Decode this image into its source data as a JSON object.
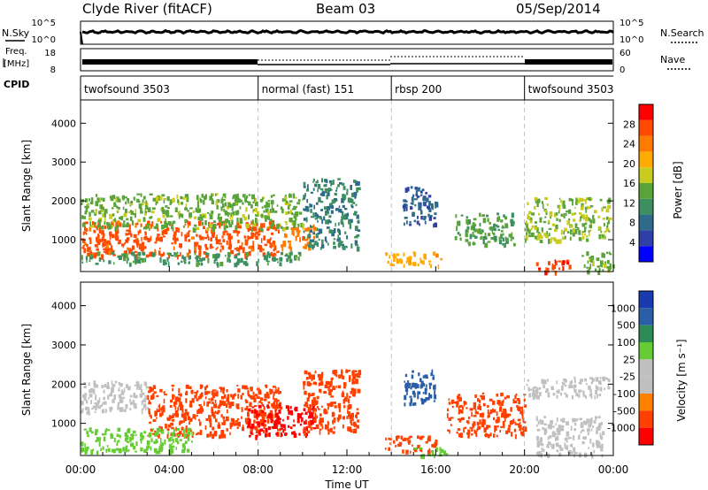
{
  "header": {
    "station": "Clyde River (fitACF)",
    "beam": "Beam 03",
    "date": "05/Sep/2014"
  },
  "top_panels": {
    "nsky_label": "N.Sky",
    "nsearch_label": "N.Search",
    "nsky_ticks": [
      "10^5",
      "10^0"
    ],
    "nsearch_ticks": [
      "10^5",
      "10^0"
    ],
    "freq_label_1": "Freq.",
    "freq_label_2": "[MHz]",
    "freq_ticks": [
      "18",
      "8"
    ],
    "nave_label": "Nave",
    "nave_ticks": [
      "60",
      "0"
    ],
    "cpid_label": "CPID"
  },
  "cpid_segments": [
    {
      "label": "twofsound 3503",
      "start": 0,
      "end": 8
    },
    {
      "label": "normal (fast) 151",
      "start": 8,
      "end": 14
    },
    {
      "label": "rbsp 200",
      "start": 14,
      "end": 20
    },
    {
      "label": "twofsound 3503",
      "start": 20,
      "end": 24
    }
  ],
  "colors": {
    "power": [
      "#0000ff",
      "#2e3fa8",
      "#2e6b8a",
      "#3d8f62",
      "#59a33a",
      "#c8cc1e",
      "#ffaa00",
      "#ff7a00",
      "#ff4a00",
      "#ff0000"
    ],
    "velocity": [
      "#ff0000",
      "#ff4000",
      "#ff7f00",
      "#c0c0c0",
      "#c0c0c0",
      "#66cc33",
      "#2e8b57",
      "#2a5fa8",
      "#1a3ab0"
    ]
  },
  "chart_data": [
    {
      "type": "heatmap",
      "name": "power",
      "xlabel": "",
      "ylabel": "Slant Range [km]",
      "xlim": [
        0,
        24
      ],
      "ylim": [
        180,
        4600
      ],
      "yticks": [
        1000,
        2000,
        3000,
        4000
      ],
      "colorbar_label": "Power [dB]",
      "colorbar_range": [
        0,
        32
      ],
      "colorbar_ticks": [
        "4",
        "8",
        "12",
        "16",
        "20",
        "24",
        "28"
      ],
      "colorbar_tick_values": [
        4,
        8,
        12,
        16,
        20,
        24,
        28
      ],
      "regions": [
        {
          "t0": 0.0,
          "t1": 9.0,
          "r0": 600,
          "r1": 1500,
          "value": 27
        },
        {
          "t0": 9.0,
          "t1": 10.5,
          "r0": 800,
          "r1": 1400,
          "value": 24
        },
        {
          "t0": 0.0,
          "t1": 10.0,
          "r0": 1300,
          "r1": 2200,
          "value": 15
        },
        {
          "t0": 0.0,
          "t1": 10.0,
          "r0": 400,
          "r1": 700,
          "value": 12
        },
        {
          "t0": 10.0,
          "t1": 12.5,
          "r0": 800,
          "r1": 2600,
          "value": 10
        },
        {
          "t0": 13.7,
          "t1": 16.2,
          "r0": 350,
          "r1": 700,
          "value": 21
        },
        {
          "t0": 14.5,
          "t1": 16.0,
          "r0": 1400,
          "r1": 2400,
          "value": 7
        },
        {
          "t0": 16.8,
          "t1": 19.5,
          "r0": 900,
          "r1": 1700,
          "value": 13
        },
        {
          "t0": 20.0,
          "t1": 23.8,
          "r0": 1000,
          "r1": 2100,
          "value": 16
        },
        {
          "t0": 20.5,
          "t1": 22.0,
          "r0": 200,
          "r1": 500,
          "value": 28
        },
        {
          "t0": 22.5,
          "t1": 24.0,
          "r0": 200,
          "r1": 700,
          "value": 15
        }
      ]
    },
    {
      "type": "heatmap",
      "name": "velocity",
      "xlabel": "Time UT",
      "ylabel": "Slant Range [km]",
      "xlim": [
        0,
        24
      ],
      "ylim": [
        180,
        4600
      ],
      "yticks": [
        1000,
        2000,
        3000,
        4000
      ],
      "xticks": [
        "00:00",
        "04:00",
        "08:00",
        "12:00",
        "16:00",
        "20:00",
        "00:00"
      ],
      "xtick_values": [
        0,
        4,
        8,
        12,
        16,
        20,
        24
      ],
      "colorbar_label": "Velocity [m s⁻¹]",
      "colorbar_ticks": [
        "1000",
        "500",
        "100",
        "25",
        "-25",
        "-100",
        "-500",
        "-1000"
      ],
      "regions": [
        {
          "t0": 0.0,
          "t1": 3.0,
          "r0": 1300,
          "r1": 2100,
          "value": -25
        },
        {
          "t0": 3.0,
          "t1": 9.0,
          "r0": 700,
          "r1": 2000,
          "value": -200
        },
        {
          "t0": 7.5,
          "t1": 10.5,
          "r0": 700,
          "r1": 1500,
          "value": -600
        },
        {
          "t0": 0.0,
          "t1": 5.0,
          "r0": 300,
          "r1": 900,
          "value": 60
        },
        {
          "t0": 10.0,
          "t1": 12.5,
          "r0": 800,
          "r1": 2400,
          "value": -120
        },
        {
          "t0": 13.7,
          "t1": 16.0,
          "r0": 300,
          "r1": 700,
          "value": -300
        },
        {
          "t0": 15.0,
          "t1": 16.5,
          "r0": 200,
          "r1": 400,
          "value": 60
        },
        {
          "t0": 14.5,
          "t1": 16.0,
          "r0": 1500,
          "r1": 2400,
          "value": 600
        },
        {
          "t0": 16.5,
          "t1": 20.0,
          "r0": 700,
          "r1": 1800,
          "value": -200
        },
        {
          "t0": 20.0,
          "t1": 23.8,
          "r0": 1700,
          "r1": 2200,
          "value": -10
        },
        {
          "t0": 20.5,
          "t1": 23.5,
          "r0": 200,
          "r1": 1200,
          "value": 10
        }
      ]
    }
  ]
}
